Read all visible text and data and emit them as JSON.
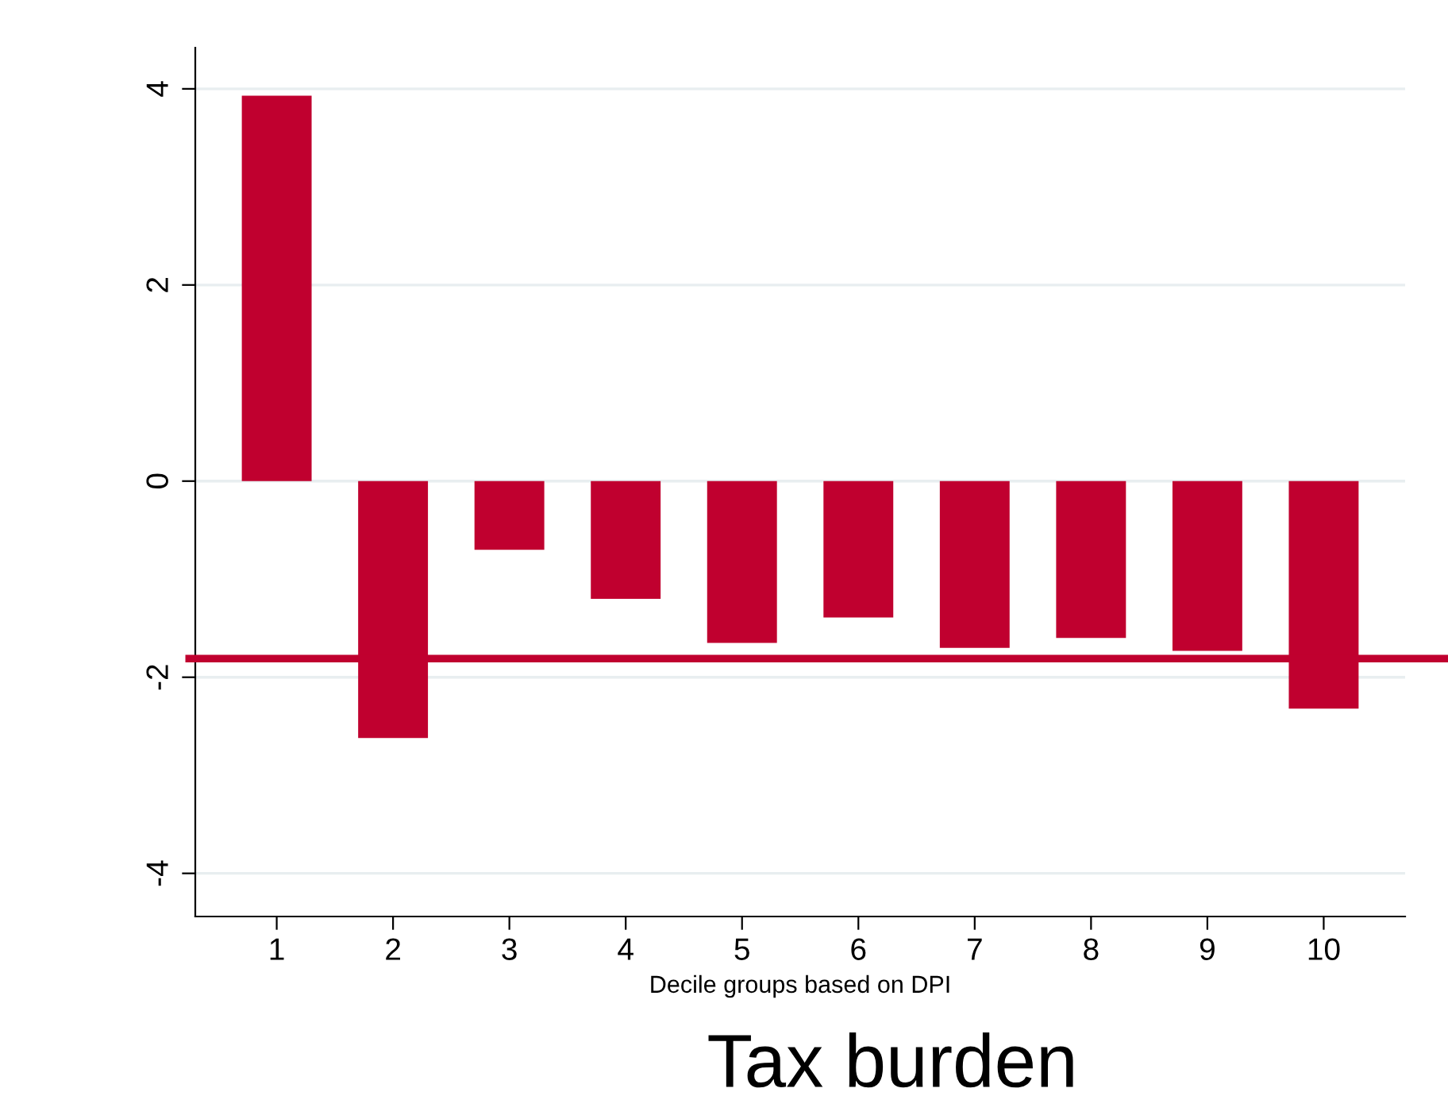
{
  "chart_data": {
    "type": "bar",
    "title": "Tax burden",
    "xlabel": "Decile groups based on DPI",
    "categories": [
      "1",
      "2",
      "3",
      "4",
      "5",
      "6",
      "7",
      "8",
      "9",
      "10"
    ],
    "values": [
      3.93,
      -2.62,
      -0.7,
      -1.2,
      -1.65,
      -1.39,
      -1.7,
      -1.6,
      -1.73,
      -2.32
    ],
    "color": "#c0002f",
    "ylim": [
      -4.44,
      4.42
    ],
    "yticks": [
      {
        "value": -4,
        "label": "-4"
      },
      {
        "value": -2,
        "label": "-2"
      },
      0,
      2,
      4
    ],
    "grid": "y",
    "ref_lines": [
      {
        "axis": "y",
        "value": -1.81,
        "color": "#c0002f"
      }
    ]
  }
}
